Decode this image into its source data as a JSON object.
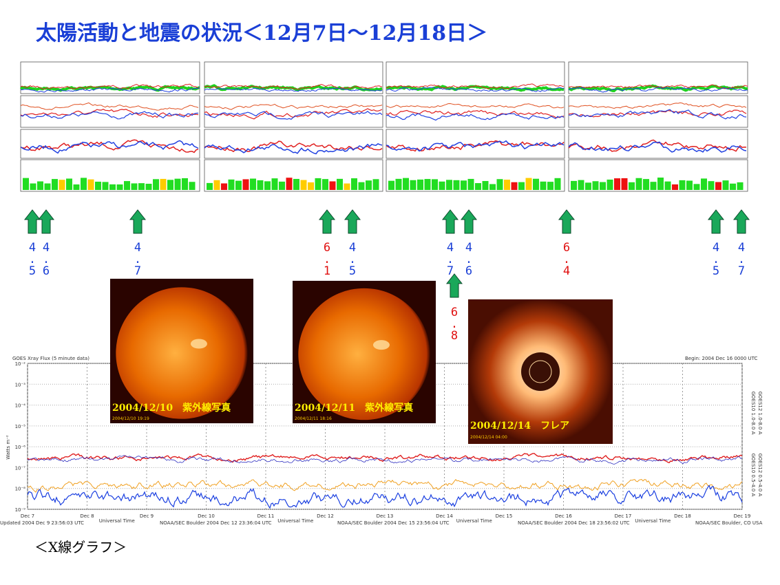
{
  "header": {
    "title": "太陽活動と地震の状況＜12月7日～12月18日＞"
  },
  "earthquakes": [
    {
      "magnitude": 4.5,
      "color": "#1a3fd6"
    },
    {
      "magnitude": 4.6,
      "color": "#1a3fd6"
    },
    {
      "magnitude": 4.7,
      "color": "#1a3fd6"
    },
    {
      "magnitude": 6.1,
      "color": "#e01010"
    },
    {
      "magnitude": 4.5,
      "color": "#1a3fd6"
    },
    {
      "magnitude": 4.7,
      "color": "#1a3fd6"
    },
    {
      "magnitude": 4.6,
      "color": "#1a3fd6"
    },
    {
      "magnitude": 6.4,
      "color": "#e01010"
    },
    {
      "magnitude": 4.5,
      "color": "#1a3fd6"
    },
    {
      "magnitude": 4.7,
      "color": "#1a3fd6"
    },
    {
      "magnitude": 6.8,
      "color": "#e01010"
    }
  ],
  "photos": [
    {
      "caption": "2004/12/10　紫外線写真",
      "timestamp": "2004/12/10 19:19"
    },
    {
      "caption": "2004/12/11　紫外線写真",
      "timestamp": "2004/12/11 18:16"
    },
    {
      "caption": "2004/12/14　フレア",
      "timestamp": "2004/12/14 04:00"
    }
  ],
  "xray_chart": {
    "title": "GOES Xray Flux (5 minute data)",
    "begin": "Begin:  2004 Dec 16 0000 UTC",
    "y_label": "Watts m⁻²",
    "x_label": "Universal Time",
    "yticks": [
      "10⁻²",
      "10⁻³",
      "10⁻⁴",
      "10⁻⁵",
      "10⁻⁶",
      "10⁻⁷",
      "10⁻⁸",
      "10⁻⁹"
    ],
    "days": [
      "Dec 7",
      "Dec 8",
      "Dec 9",
      "Dec 10",
      "Dec 11",
      "Dec 12",
      "Dec 13",
      "Dec 14",
      "Dec 15",
      "Dec 16",
      "Dec 17",
      "Dec 18",
      "Dec 19"
    ],
    "legend": [
      "GOES10 1.0-8.0 A",
      "GOES12 1.0-8.0 A",
      "GOES10 0.5-4.0 A",
      "GOES12 0.5-4.0 A"
    ],
    "updates": [
      "Updated 2004 Dec  9 23:56:03 UTC",
      "NOAA/SEC Boulder 2004 Dec 12 23:36:04 UTC",
      "NOAA/SEC Boulder 2004 Dec 15 23:56:04 UTC",
      "NOAA/SEC Boulder 2004 Dec 18 23:56:02 UTC",
      "NOAA/SEC Boulder, CO USA"
    ]
  },
  "footer": {
    "caption": "＜X線グラフ＞"
  }
}
